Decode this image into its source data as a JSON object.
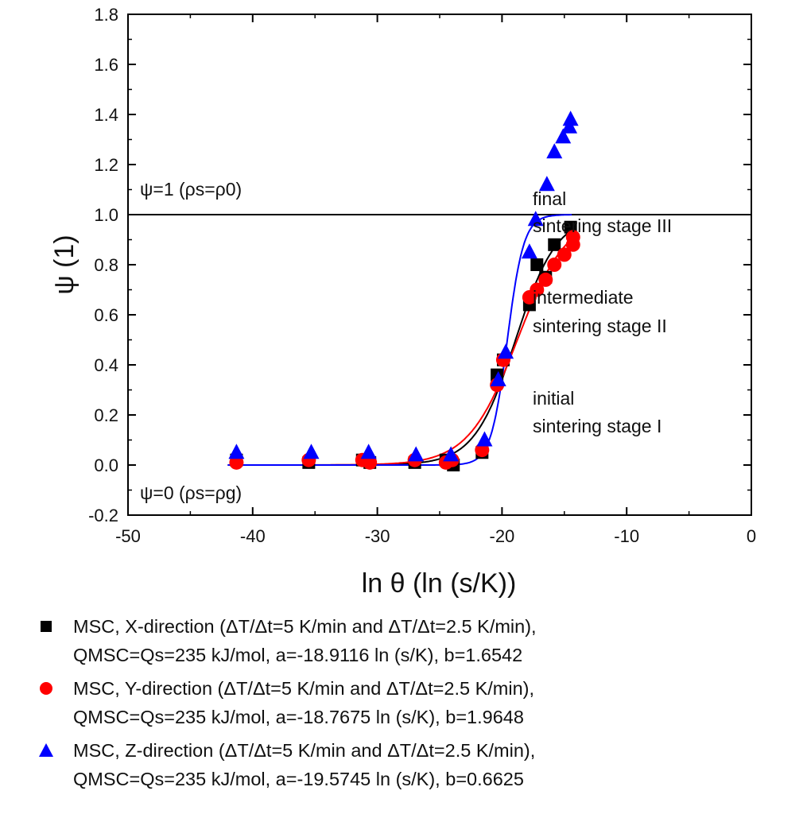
{
  "chart_data": {
    "type": "scatter",
    "xlabel": "ln θ (ln (s/K))",
    "ylabel": "ψ (1)",
    "xlim": [
      -50,
      0
    ],
    "ylim": [
      -0.2,
      1.8
    ],
    "x_ticks": [
      "-50",
      "-40",
      "-30",
      "-20",
      "-10",
      "0"
    ],
    "y_ticks": [
      "-0.2",
      "0.0",
      "0.2",
      "0.4",
      "0.6",
      "0.8",
      "1.0",
      "1.2",
      "1.4",
      "1.6",
      "1.8"
    ],
    "reference_line_y": 1.0,
    "annotations": {
      "upper_ref": "ψ=1 (ρs=ρ0)",
      "lower_ref": "ψ=0 (ρs=ρg)",
      "stage_final_1": "final",
      "stage_final_2": "sintering stage III",
      "stage_intermediate_1": "intermediate",
      "stage_intermediate_2": "sintering stage II",
      "stage_initial_1": "initial",
      "stage_initial_2": "sintering stage I"
    },
    "series": [
      {
        "name": "MSC, X-direction",
        "marker": "square",
        "color": "#000000",
        "points": [
          [
            -41.3,
            0.02
          ],
          [
            -35.5,
            0.01
          ],
          [
            -31.2,
            0.02
          ],
          [
            -30.6,
            0.01
          ],
          [
            -27.0,
            0.01
          ],
          [
            -24.5,
            0.02
          ],
          [
            -23.9,
            0.0
          ],
          [
            -21.6,
            0.05
          ],
          [
            -20.4,
            0.36
          ],
          [
            -19.9,
            0.42
          ],
          [
            -17.8,
            0.64
          ],
          [
            -17.2,
            0.8
          ],
          [
            -16.5,
            0.75
          ],
          [
            -15.8,
            0.88
          ],
          [
            -14.5,
            0.95
          ]
        ],
        "fit": {
          "a": -18.9116,
          "b": 1.6542
        }
      },
      {
        "name": "MSC, Y-direction",
        "marker": "circle",
        "color": "#ff0000",
        "points": [
          [
            -41.3,
            0.01
          ],
          [
            -35.5,
            0.02
          ],
          [
            -31.2,
            0.02
          ],
          [
            -30.6,
            0.01
          ],
          [
            -27.0,
            0.02
          ],
          [
            -24.5,
            0.01
          ],
          [
            -24.0,
            0.02
          ],
          [
            -21.6,
            0.06
          ],
          [
            -20.4,
            0.32
          ],
          [
            -19.9,
            0.42
          ],
          [
            -17.8,
            0.67
          ],
          [
            -17.2,
            0.7
          ],
          [
            -16.5,
            0.74
          ],
          [
            -15.8,
            0.8
          ],
          [
            -15.0,
            0.84
          ],
          [
            -14.3,
            0.88
          ],
          [
            -14.3,
            0.91
          ]
        ],
        "fit": {
          "a": -18.7675,
          "b": 1.9648
        }
      },
      {
        "name": "MSC, Z-direction",
        "marker": "triangle",
        "color": "#0000ff",
        "points": [
          [
            -41.3,
            0.05
          ],
          [
            -35.3,
            0.05
          ],
          [
            -30.7,
            0.05
          ],
          [
            -26.9,
            0.04
          ],
          [
            -24.1,
            0.04
          ],
          [
            -21.4,
            0.1
          ],
          [
            -20.3,
            0.34
          ],
          [
            -19.7,
            0.45
          ],
          [
            -17.8,
            0.85
          ],
          [
            -17.3,
            0.98
          ],
          [
            -16.4,
            1.12
          ],
          [
            -15.8,
            1.25
          ],
          [
            -15.1,
            1.31
          ],
          [
            -14.6,
            1.35
          ],
          [
            -14.5,
            1.38
          ]
        ],
        "fit": {
          "a": -19.5745,
          "b": 0.6625
        }
      }
    ]
  },
  "legend": [
    {
      "line1": "MSC, X-direction (ΔT/Δt=5 K/min and ΔT/Δt=2.5 K/min),",
      "line2": "QMSC=Qs=235 kJ/mol, a=-18.9116 ln (s/K), b=1.6542"
    },
    {
      "line1": "MSC, Y-direction (ΔT/Δt=5 K/min and ΔT/Δt=2.5 K/min),",
      "line2": "QMSC=Qs=235 kJ/mol, a=-18.7675 ln (s/K), b=1.9648"
    },
    {
      "line1": "MSC, Z-direction (ΔT/Δt=5 K/min and ΔT/Δt=2.5 K/min),",
      "line2": "QMSC=Qs=235 kJ/mol, a=-19.5745 ln (s/K), b=0.6625"
    }
  ]
}
